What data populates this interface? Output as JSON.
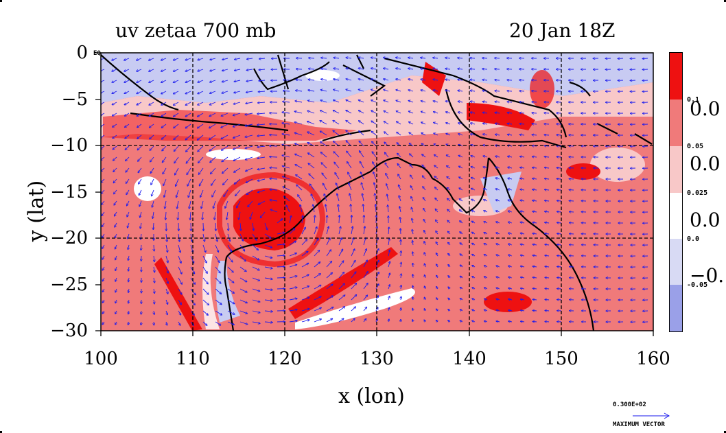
{
  "title_left": "uv zetaa 700 mb",
  "title_right": "20 Jan 18Z",
  "axes": {
    "xlabel": "x (lon)",
    "ylabel": "y (lat)",
    "xlim": [
      100,
      160
    ],
    "ylim": [
      -30,
      0
    ],
    "xticks": [
      "100",
      "110",
      "120",
      "130",
      "140",
      "150",
      "160"
    ],
    "yticks": [
      "0",
      "−5",
      "−10",
      "−15",
      "−20",
      "−25",
      "−30"
    ],
    "eq_label": "EQ"
  },
  "colorbar": {
    "small_labels": [
      "0.1",
      "0.05",
      "0.025",
      "0.0",
      "-0.05"
    ],
    "big_labels": [
      "0.0",
      "0.0",
      "0.0",
      "−0."
    ],
    "colors": [
      "#ee1111",
      "#f07a7a",
      "#f8c8c8",
      "#ffffff",
      "#d8daf4",
      "#9aa0e8"
    ]
  },
  "vector_key": {
    "value": "0.300E+02",
    "label": "MAXIMUM VECTOR"
  },
  "field_colors": {
    "strong_pos": "#ee1111",
    "pos": "#f07a7a",
    "weak_pos": "#f8c8c8",
    "neg": "#c8cbf2",
    "vector": "#1a1aee",
    "coast": "#000000"
  }
}
